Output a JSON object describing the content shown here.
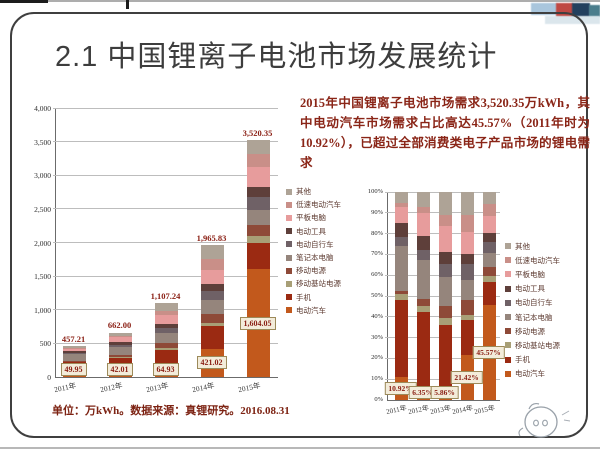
{
  "slide": {
    "title": "2.1 中国锂离子电池市场发展统计",
    "paragraph": "2015年中国锂离子电池市场需求3,520.35万kWh，其中电动汽车市场需求占比高达45.57%（2011年时为10.92%），已超过全部消费类电子产品市场的锂电需求",
    "source_note": "单位：万kWh。数据来源：真锂研究。2016.08.31"
  },
  "chart_data": [
    {
      "type": "bar",
      "subtype": "stacked",
      "title": "",
      "xlabel": "",
      "ylabel": "",
      "unit": "万kWh",
      "categories": [
        "2011年",
        "2012年",
        "2013年",
        "2014年",
        "2015年"
      ],
      "totals": [
        457.21,
        662.0,
        1107.24,
        1965.83,
        3520.35
      ],
      "total_labels": [
        "457.21",
        "662.00",
        "1,107.24",
        "1,965.83",
        "3,520.35"
      ],
      "ev_value_labels": [
        "49.95",
        "42.01",
        "64.93",
        "421.02",
        "1,604.05"
      ],
      "ev_values": [
        49.95,
        42.01,
        64.93,
        421.02,
        1604.05
      ],
      "ylim": [
        0,
        4000
      ],
      "yticks": [
        "0",
        "500",
        "1,000",
        "1,500",
        "2,000",
        "2,500",
        "3,000",
        "3,500",
        "4,000"
      ],
      "grid": true,
      "legend_position": "right",
      "series": [
        {
          "name": "电动汽车",
          "color": "#c2591c",
          "pct": [
            10.92,
            6.35,
            5.86,
            21.42,
            45.57
          ]
        },
        {
          "name": "手机",
          "color": "#9b2a12",
          "pct": [
            37.0,
            36.0,
            30.0,
            17.0,
            11.0
          ]
        },
        {
          "name": "移动基站电源",
          "color": "#a89f76",
          "pct": [
            3.0,
            3.0,
            3.5,
            2.5,
            3.0
          ]
        },
        {
          "name": "移动电源",
          "color": "#8e4a38",
          "pct": [
            1.5,
            3.0,
            6.0,
            7.0,
            4.5
          ]
        },
        {
          "name": "笔记本电脑",
          "color": "#95857c",
          "pct": [
            21.5,
            19.0,
            14.0,
            10.0,
            6.5
          ]
        },
        {
          "name": "电动自行车",
          "color": "#6f6166",
          "pct": [
            4.5,
            5.0,
            6.0,
            7.5,
            5.5
          ]
        },
        {
          "name": "电动工具",
          "color": "#5e3f3a",
          "pct": [
            6.5,
            6.5,
            6.0,
            5.0,
            4.0
          ]
        },
        {
          "name": "平板电脑",
          "color": "#e79c9c",
          "pct": [
            8.0,
            11.0,
            12.5,
            10.5,
            8.5
          ]
        },
        {
          "name": "低速电动汽车",
          "color": "#c98f88",
          "pct": [
            2.0,
            3.0,
            5.0,
            8.0,
            5.5
          ]
        },
        {
          "name": "其他",
          "color": "#aea396",
          "pct": [
            5.08,
            7.15,
            11.14,
            11.08,
            5.93
          ]
        }
      ]
    },
    {
      "type": "bar",
      "subtype": "stacked-100pct",
      "title": "",
      "categories": [
        "2011年",
        "2012年",
        "2013年",
        "2014年",
        "2015年"
      ],
      "ylim": [
        0,
        100
      ],
      "yticks": [
        "0%",
        "10%",
        "20%",
        "30%",
        "40%",
        "50%",
        "60%",
        "70%",
        "80%",
        "90%",
        "100%"
      ],
      "grid": true,
      "legend_position": "right",
      "ev_pct_labels": [
        "10.92%",
        "6.35%",
        "5.86%",
        "21.42%",
        "45.57%"
      ],
      "series_note": "same composition series as left chart"
    }
  ]
}
